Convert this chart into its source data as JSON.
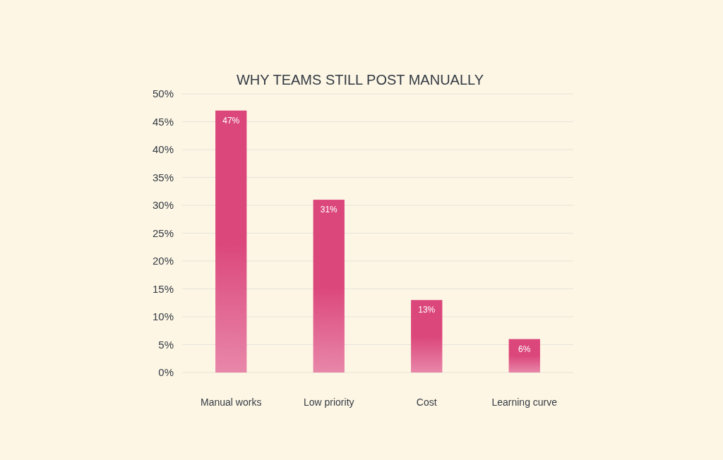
{
  "chart_data": {
    "type": "bar",
    "title": "WHY TEAMS STILL POST MANUALLY",
    "categories": [
      "Manual works",
      "Low priority",
      "Cost",
      "Learning curve"
    ],
    "values": [
      47,
      31,
      13,
      6
    ],
    "color": "#db467b",
    "ylim": [
      0,
      50
    ],
    "yticks": [
      {
        "value": 0,
        "label": "0%"
      },
      {
        "value": 5,
        "label": "5%"
      },
      {
        "value": 10,
        "label": "10%"
      },
      {
        "value": 15,
        "label": "15%"
      },
      {
        "value": 20,
        "label": "20%"
      },
      {
        "value": 25,
        "label": "25%"
      },
      {
        "value": 30,
        "label": "30%"
      },
      {
        "value": 35,
        "label": "35%"
      },
      {
        "value": 40,
        "label": "40%"
      },
      {
        "value": 45,
        "label": "45%"
      },
      {
        "value": 50,
        "label": "50%"
      }
    ],
    "grid": "y",
    "value_labels": [
      "47%",
      "31%",
      "13%",
      "6%"
    ]
  }
}
